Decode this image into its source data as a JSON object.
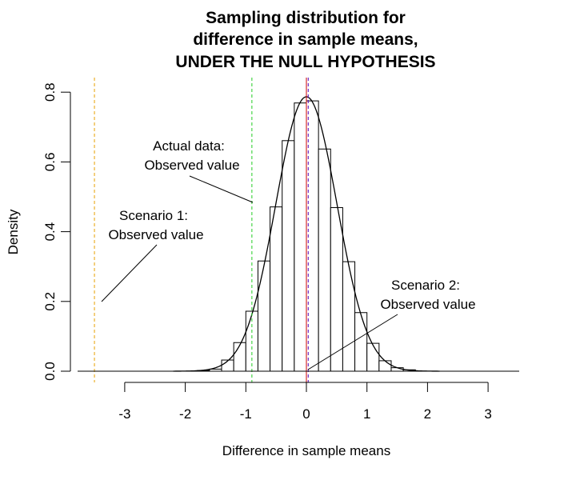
{
  "chart_data": {
    "type": "histogram",
    "title_lines": [
      "Sampling distribution for",
      "difference in sample means,",
      "UNDER THE NULL HYPOTHESIS"
    ],
    "xlabel": "Difference in sample means",
    "ylabel": "Density",
    "xlim": [
      -3.5,
      3.5
    ],
    "ylim": [
      0,
      0.8
    ],
    "x_ticks": [
      -3,
      -2,
      -1,
      0,
      1,
      2,
      3
    ],
    "x_tick_labels": [
      "-3",
      "-2",
      "-1",
      "0",
      "1",
      "2",
      "3"
    ],
    "y_ticks": [
      0.0,
      0.2,
      0.4,
      0.6,
      0.8
    ],
    "y_tick_labels": [
      "0.0",
      "0.2",
      "0.4",
      "0.6",
      "0.8"
    ],
    "grid": false,
    "histogram": {
      "bin_width": 0.2,
      "bin_left_edges": [
        -1.8,
        -1.6,
        -1.4,
        -1.2,
        -1.0,
        -0.8,
        -0.6,
        -0.4,
        -0.2,
        0.0,
        0.2,
        0.4,
        0.6,
        0.8,
        1.0,
        1.2,
        1.4,
        1.6
      ],
      "densities": [
        0.002,
        0.006,
        0.032,
        0.082,
        0.172,
        0.316,
        0.471,
        0.661,
        0.769,
        0.775,
        0.637,
        0.469,
        0.314,
        0.168,
        0.08,
        0.03,
        0.01,
        0.004
      ]
    },
    "density_curve": {
      "distribution": "normal",
      "mean": 0,
      "sd": 0.507
    },
    "reference_lines": [
      {
        "x": -3.5,
        "color": "#e8a000",
        "style": "dashed"
      },
      {
        "x": -0.9,
        "color": "#22cc22",
        "style": "dashed"
      },
      {
        "x": 0.0,
        "color": "#cc0000",
        "style": "solid"
      },
      {
        "x": 0.03,
        "color": "#5500bb",
        "style": "dashed"
      }
    ],
    "annotations": [
      {
        "lines": [
          "Actual data:",
          "Observed value"
        ]
      },
      {
        "lines": [
          "Scenario 1:",
          "Observed value"
        ]
      },
      {
        "lines": [
          "Scenario 2:",
          "Observed value"
        ]
      }
    ],
    "colors": {
      "bars_fill": "#ffffff",
      "bars_stroke": "#000000",
      "curve": "#000000"
    }
  }
}
